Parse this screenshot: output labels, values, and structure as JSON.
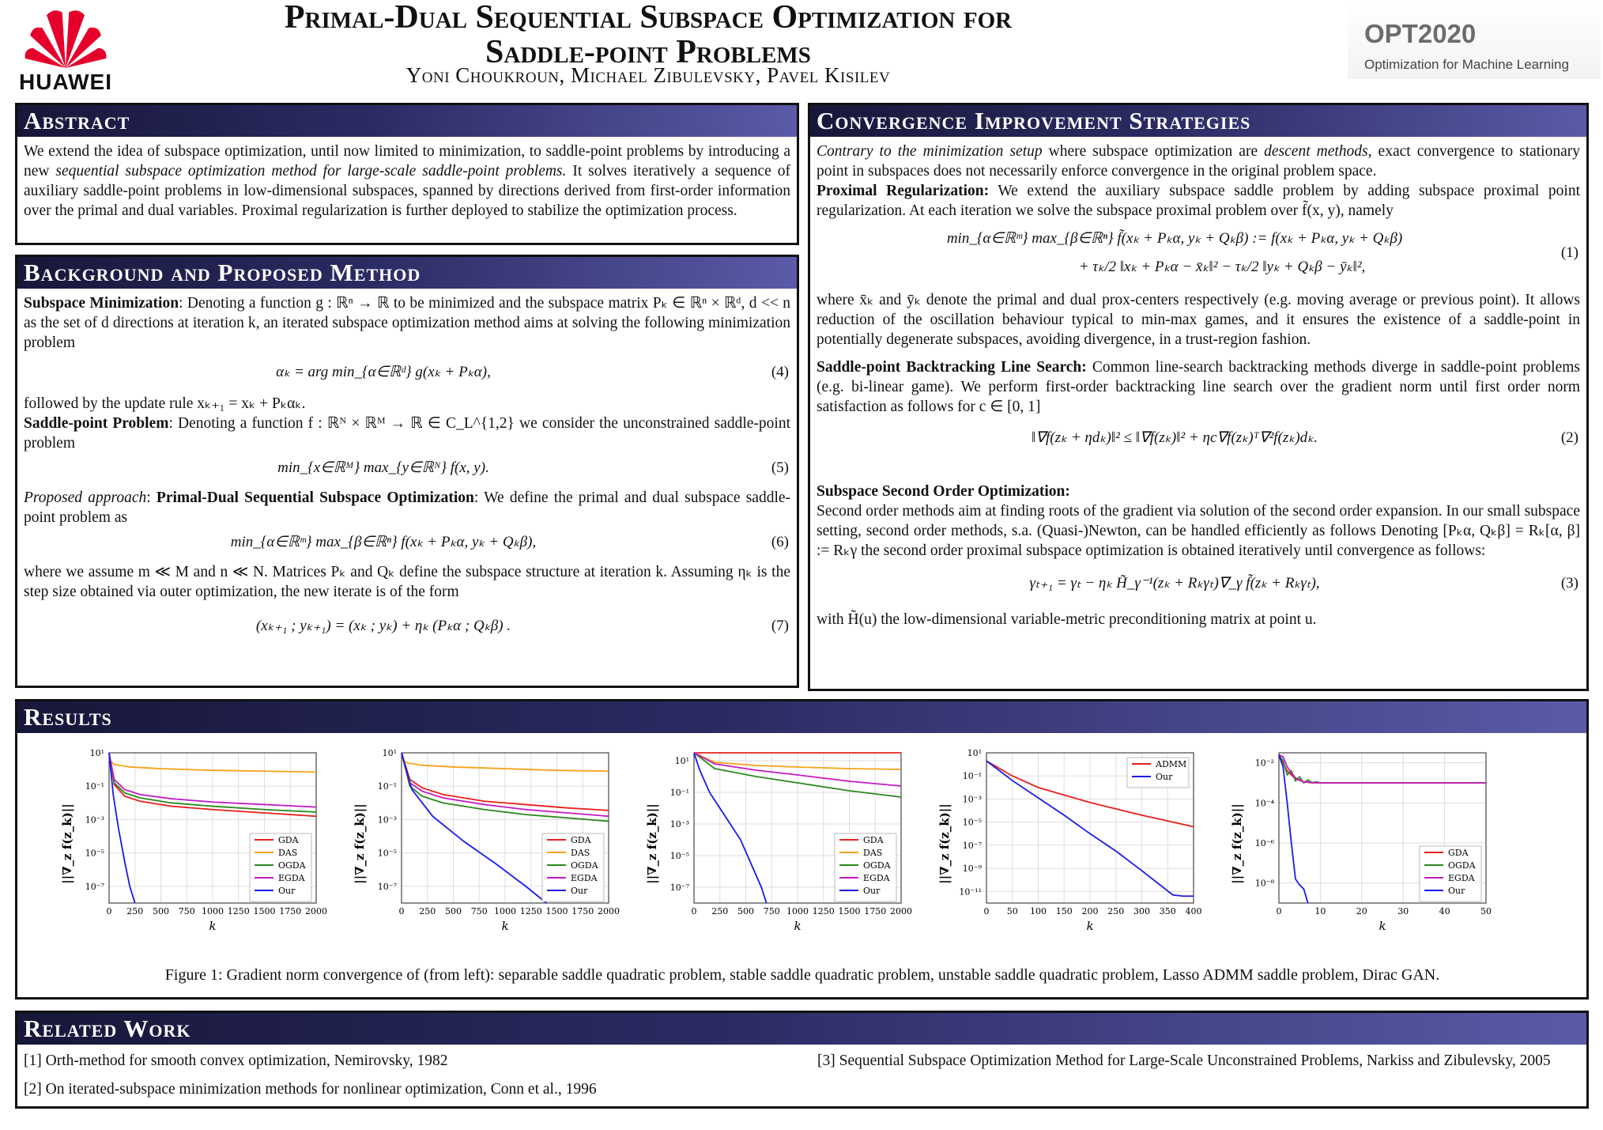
{
  "header": {
    "logo_text": "HUAWEI",
    "title_line1": "Primal-Dual Sequential Subspace Optimization for",
    "title_line2": "Saddle-point Problems",
    "authors": "Yoni Choukroun, Michael Zibulevsky, Pavel Kisilev",
    "conference": "OPT2020",
    "conference_sub": "Optimization for Machine Learning",
    "logo_color": "#e4002b"
  },
  "colors": {
    "header_dark": "#17173a",
    "header_light": "#5a5aa8"
  },
  "abstract": {
    "heading": "Abstract",
    "text_a": "We extend the idea of subspace optimization, until now limited to minimization, to saddle-point problems by introducing a new ",
    "text_em": "sequential subspace optimization method for large-scale saddle-point problems.",
    "text_b": " It solves iteratively a sequence of auxiliary saddle-point problems in low-dimensional subspaces, spanned by directions derived from first-order information over the primal and dual variables. Proximal regularization is further deployed to stabilize the optimization process."
  },
  "background": {
    "heading": "Background and Proposed Method",
    "p1_label": "Subspace Minimization",
    "p1_text": ": Denoting a function g : ℝⁿ → ℝ to be minimized and the subspace matrix Pₖ ∈ ℝⁿ × ℝᵈ, d << n as the set of d directions at iteration k, an iterated subspace optimization method aims at solving the following minimization problem",
    "eq4": "αₖ = arg min_{α∈ℝᵈ} g(xₖ + Pₖα),",
    "eq4_num": "(4)",
    "p2": "followed by the update rule xₖ₊₁ = xₖ + Pₖαₖ.",
    "p3_label": "Saddle-point Problem",
    "p3_text": ": Denoting a function f : ℝᴺ × ℝᴹ → ℝ ∈ C_L^{1,2} we consider the unconstrained saddle-point problem",
    "eq5": "min_{x∈ℝᴹ} max_{y∈ℝᴺ} f(x, y).",
    "eq5_num": "(5)",
    "p4_label_a": "Proposed approach",
    "p4_label_b": "Primal-Dual Sequential Subspace Optimization",
    "p4_text": ": We define the primal and dual subspace saddle-point problem as",
    "eq6": "min_{α∈ℝᵐ} max_{β∈ℝⁿ} f(xₖ + Pₖα, yₖ + Qₖβ),",
    "eq6_num": "(6)",
    "p5": "where we assume m ≪ M and n ≪ N. Matrices Pₖ and Qₖ define the subspace structure at iteration k. Assuming ηₖ is the step size obtained via outer optimization, the new iterate is of the form",
    "eq7": "(xₖ₊₁ ; yₖ₊₁) = (xₖ ; yₖ) + ηₖ (Pₖα ; Qₖβ) .",
    "eq7_num": "(7)"
  },
  "convergence": {
    "heading": "Convergence Improvement Strategies",
    "p1_em": "Contrary to the minimization setup",
    "p1_a": " where subspace optimization are ",
    "p1_em2": "descent methods",
    "p1_b": ", exact convergence to stationary point in subspaces does not necessarily enforce convergence in the original problem space.",
    "p2_label": "Proximal Regularization:",
    "p2_text": " We extend the auxiliary subspace saddle problem by adding subspace proximal point regularization. At each iteration we solve the subspace proximal problem over f̃(x, y), namely",
    "eq1a": "min_{α∈ℝᵐ} max_{β∈ℝⁿ} f̃(xₖ + Pₖα, yₖ + Qₖβ) := f(xₖ + Pₖα, yₖ + Qₖβ)",
    "eq1b": "+ τₖ/2 ‖xₖ + Pₖα − x̄ₖ‖² − τₖ/2 ‖yₖ + Qₖβ − ȳₖ‖²,",
    "eq1_num": "(1)",
    "p3": "where x̄ₖ and ȳₖ denote the primal and dual prox-centers respectively (e.g. moving average or previous point). It allows reduction of the oscillation behaviour typical to min-max games, and it ensures the existence of a saddle-point in potentially degenerate subspaces, avoiding divergence, in a trust-region fashion.",
    "p4_label": "Saddle-point Backtracking Line Search:",
    "p4_text": " Common line-search backtracking methods diverge in saddle-point problems (e.g. bi-linear game). We perform first-order backtracking line search over the gradient norm until first order norm satisfaction as follows for c ∈ [0, 1]",
    "eq2": "‖∇f(zₖ + ηdₖ)‖² ≤ ‖∇f(zₖ)‖² + ηc∇f(zₖ)ᵀ∇²f(zₖ)dₖ.",
    "eq2_num": "(2)",
    "p5_label": "Subspace Second Order Optimization:",
    "p5_text": "Second order methods aim at finding roots of the gradient via solution of the second order expansion. In our small subspace setting, second order methods, s.a. (Quasi-)Newton, can be handled efficiently as follows Denoting [Pₖα, Qₖβ] = Rₖ[α, β] := Rₖγ the second order proximal subspace optimization is obtained iteratively until convergence as follows:",
    "eq3": "γₜ₊₁ = γₜ − ηₖ H̃_γ⁻¹(zₖ + Rₖγₜ)∇_γ f̃(zₖ + Rₖγₜ),",
    "eq3_num": "(3)",
    "p6": "with H̃(u) the low-dimensional variable-metric preconditioning matrix at point u."
  },
  "results": {
    "heading": "Results",
    "caption": "Figure 1: Gradient norm convergence of (from left): separable saddle quadratic problem, stable saddle quadratic problem, unstable saddle quadratic problem, Lasso ADMM saddle problem, Dirac GAN.",
    "ylabel": "||∇_z f(z_k)||",
    "xlabel": "k"
  },
  "chart_data": [
    {
      "type": "line",
      "yscale": "log",
      "xlim": [
        0,
        2000
      ],
      "ylim_exp": [
        -8,
        1
      ],
      "xticks": [
        "0",
        "250",
        "500",
        "750",
        "1000",
        "1250",
        "1500",
        "1750",
        "2000"
      ],
      "yticks": [
        {
          "exp": 1,
          "label": "10¹"
        },
        {
          "exp": -1,
          "label": "10⁻¹"
        },
        {
          "exp": -3,
          "label": "10⁻³"
        },
        {
          "exp": -5,
          "label": "10⁻⁵"
        },
        {
          "exp": -7,
          "label": "10⁻⁷"
        }
      ],
      "legend_pos": "lower-right",
      "series": [
        {
          "name": "GDA",
          "color": "#e8201c",
          "x": [
            0,
            50,
            150,
            300,
            600,
            1000,
            1500,
            2000
          ],
          "logy": [
            1.0,
            -0.9,
            -1.6,
            -1.9,
            -2.2,
            -2.4,
            -2.6,
            -2.8
          ]
        },
        {
          "name": "DAS",
          "color": "#f7a21b",
          "x": [
            0,
            50,
            200,
            500,
            1000,
            1500,
            2000
          ],
          "logy": [
            0.6,
            0.3,
            0.15,
            0.05,
            -0.05,
            -0.1,
            -0.15
          ]
        },
        {
          "name": "OGDA",
          "color": "#2b8a1e",
          "x": [
            0,
            50,
            150,
            300,
            600,
            1000,
            1500,
            2000
          ],
          "logy": [
            1.0,
            -0.8,
            -1.4,
            -1.7,
            -2.0,
            -2.2,
            -2.4,
            -2.55
          ]
        },
        {
          "name": "EGDA",
          "color": "#c41bc4",
          "x": [
            0,
            50,
            150,
            300,
            600,
            1000,
            1500,
            2000
          ],
          "logy": [
            1.0,
            -0.6,
            -1.2,
            -1.5,
            -1.75,
            -1.95,
            -2.1,
            -2.25
          ]
        },
        {
          "name": "Our",
          "color": "#1a1ae8",
          "x": [
            0,
            40,
            90,
            150,
            200,
            250
          ],
          "logy": [
            1.0,
            -1.5,
            -3.5,
            -5.5,
            -7.0,
            -8.0
          ]
        }
      ]
    },
    {
      "type": "line",
      "yscale": "log",
      "xlim": [
        0,
        2000
      ],
      "ylim_exp": [
        -8,
        1
      ],
      "xticks": [
        "0",
        "250",
        "500",
        "750",
        "1000",
        "1250",
        "1500",
        "1750",
        "2000"
      ],
      "yticks": [
        {
          "exp": 1,
          "label": "10¹"
        },
        {
          "exp": -1,
          "label": "10⁻¹"
        },
        {
          "exp": -3,
          "label": "10⁻³"
        },
        {
          "exp": -5,
          "label": "10⁻⁵"
        },
        {
          "exp": -7,
          "label": "10⁻⁷"
        }
      ],
      "legend_pos": "lower-right",
      "series": [
        {
          "name": "GDA",
          "color": "#e8201c",
          "x": [
            0,
            80,
            200,
            400,
            800,
            1200,
            1600,
            2000
          ],
          "logy": [
            1.0,
            -0.6,
            -1.1,
            -1.5,
            -1.9,
            -2.1,
            -2.3,
            -2.45
          ]
        },
        {
          "name": "DAS",
          "color": "#f7a21b",
          "x": [
            0,
            50,
            200,
            500,
            1000,
            1500,
            2000
          ],
          "logy": [
            0.6,
            0.4,
            0.25,
            0.15,
            0.05,
            -0.05,
            -0.1
          ]
        },
        {
          "name": "OGDA",
          "color": "#2b8a1e",
          "x": [
            0,
            80,
            200,
            400,
            800,
            1200,
            1600,
            2000
          ],
          "logy": [
            1.0,
            -1.0,
            -1.6,
            -2.0,
            -2.4,
            -2.7,
            -2.9,
            -3.1
          ]
        },
        {
          "name": "EGDA",
          "color": "#c41bc4",
          "x": [
            0,
            80,
            200,
            400,
            800,
            1200,
            1600,
            2000
          ],
          "logy": [
            1.0,
            -0.8,
            -1.3,
            -1.7,
            -2.1,
            -2.4,
            -2.6,
            -2.8
          ]
        },
        {
          "name": "Our",
          "color": "#1a1ae8",
          "x": [
            0,
            100,
            300,
            600,
            900,
            1200,
            1400
          ],
          "logy": [
            1.0,
            -1.2,
            -2.8,
            -4.3,
            -5.6,
            -7.0,
            -8.0
          ]
        }
      ]
    },
    {
      "type": "line",
      "yscale": "log",
      "xlim": [
        0,
        2000
      ],
      "ylim_exp": [
        -8,
        1.5
      ],
      "xticks": [
        "0",
        "250",
        "500",
        "750",
        "1000",
        "1250",
        "1500",
        "1750",
        "2000"
      ],
      "yticks": [
        {
          "exp": 1,
          "label": "10¹"
        },
        {
          "exp": -1,
          "label": "10⁻¹"
        },
        {
          "exp": -3,
          "label": "10⁻³"
        },
        {
          "exp": -5,
          "label": "10⁻⁵"
        },
        {
          "exp": -7,
          "label": "10⁻⁷"
        }
      ],
      "legend_pos": "lower-right",
      "series": [
        {
          "name": "GDA",
          "color": "#e8201c",
          "x": [
            0,
            2000
          ],
          "logy": [
            1.5,
            1.5
          ]
        },
        {
          "name": "DAS",
          "color": "#f7a21b",
          "x": [
            0,
            200,
            600,
            1000,
            1500,
            2000
          ],
          "logy": [
            1.5,
            0.9,
            0.7,
            0.6,
            0.5,
            0.45
          ]
        },
        {
          "name": "OGDA",
          "color": "#2b8a1e",
          "x": [
            0,
            200,
            600,
            1000,
            1500,
            2000
          ],
          "logy": [
            1.5,
            0.5,
            0.0,
            -0.4,
            -0.9,
            -1.3
          ]
        },
        {
          "name": "EGDA",
          "color": "#c41bc4",
          "x": [
            0,
            200,
            600,
            1000,
            1500,
            2000
          ],
          "logy": [
            1.5,
            0.8,
            0.4,
            0.1,
            -0.3,
            -0.6
          ]
        },
        {
          "name": "Our",
          "color": "#1a1ae8",
          "x": [
            0,
            50,
            150,
            300,
            450,
            550,
            650,
            700
          ],
          "logy": [
            1.5,
            0.5,
            -1.0,
            -2.5,
            -4.0,
            -5.5,
            -7.0,
            -8.0
          ]
        }
      ]
    },
    {
      "type": "line",
      "yscale": "log",
      "xlim": [
        0,
        400
      ],
      "ylim_exp": [
        -12,
        1
      ],
      "xticks": [
        "0",
        "50",
        "100",
        "150",
        "200",
        "250",
        "300",
        "350",
        "400"
      ],
      "yticks": [
        {
          "exp": 1,
          "label": "10¹"
        },
        {
          "exp": -1,
          "label": "10⁻¹"
        },
        {
          "exp": -3,
          "label": "10⁻³"
        },
        {
          "exp": -5,
          "label": "10⁻⁵"
        },
        {
          "exp": -7,
          "label": "10⁻⁷"
        },
        {
          "exp": -9,
          "label": "10⁻⁹"
        },
        {
          "exp": -11,
          "label": "10⁻¹¹"
        }
      ],
      "legend_pos": "upper-right",
      "series": [
        {
          "name": "ADMM",
          "color": "#e8201c",
          "x": [
            0,
            50,
            100,
            200,
            300,
            400
          ],
          "logy": [
            0.3,
            -1.0,
            -2.0,
            -3.3,
            -4.4,
            -5.4
          ]
        },
        {
          "name": "Our",
          "color": "#1a1ae8",
          "x": [
            0,
            50,
            100,
            150,
            200,
            250,
            300,
            360,
            380,
            400
          ],
          "logy": [
            0.3,
            -1.4,
            -2.9,
            -4.4,
            -6.0,
            -7.5,
            -9.2,
            -11.3,
            -11.4,
            -11.4
          ]
        }
      ]
    },
    {
      "type": "line",
      "yscale": "log",
      "xlim": [
        0,
        50
      ],
      "ylim_exp": [
        -9,
        -1.5
      ],
      "xticks": [
        "0",
        "10",
        "20",
        "30",
        "40",
        "50"
      ],
      "yticks": [
        {
          "exp": -2,
          "label": "10⁻²"
        },
        {
          "exp": -4,
          "label": "10⁻⁴"
        },
        {
          "exp": -6,
          "label": "10⁻⁶"
        },
        {
          "exp": -8,
          "label": "10⁻⁸"
        }
      ],
      "legend_pos": "lower-right",
      "series": [
        {
          "name": "GDA",
          "color": "#e8201c",
          "x": [
            0,
            2,
            4,
            6,
            8,
            10,
            50
          ],
          "logy": [
            -1.6,
            -2.4,
            -2.8,
            -2.95,
            -3.0,
            -3.0,
            -3.0
          ]
        },
        {
          "name": "OGDA",
          "color": "#2b8a1e",
          "x": [
            0,
            1,
            2,
            3,
            4,
            5,
            6,
            7,
            8,
            9,
            10,
            50
          ],
          "logy": [
            -1.6,
            -1.9,
            -2.6,
            -2.4,
            -2.9,
            -2.7,
            -3.0,
            -2.85,
            -3.0,
            -2.95,
            -3.0,
            -3.0
          ]
        },
        {
          "name": "EGDA",
          "color": "#c41bc4",
          "x": [
            0,
            1,
            2,
            3,
            4,
            6,
            10,
            50
          ],
          "logy": [
            -1.6,
            -1.7,
            -2.2,
            -2.5,
            -2.75,
            -2.95,
            -3.0,
            -3.0
          ]
        },
        {
          "name": "Our",
          "color": "#1a1ae8",
          "x": [
            0,
            1,
            2,
            3,
            4,
            5,
            6,
            7
          ],
          "logy": [
            -1.6,
            -2.2,
            -4.0,
            -6.0,
            -7.8,
            -8.1,
            -8.3,
            -9.0
          ]
        }
      ]
    }
  ],
  "related": {
    "heading": "Related Work",
    "refs": [
      "[1]  Orth-method for smooth convex optimization, Nemirovsky, 1982",
      "[2]  On iterated-subspace minimization methods for nonlinear optimization, Conn et al., 1996",
      "[3]  Sequential Subspace Optimization Method for Large-Scale Unconstrained Problems, Narkiss and Zibulevsky, 2005"
    ]
  }
}
